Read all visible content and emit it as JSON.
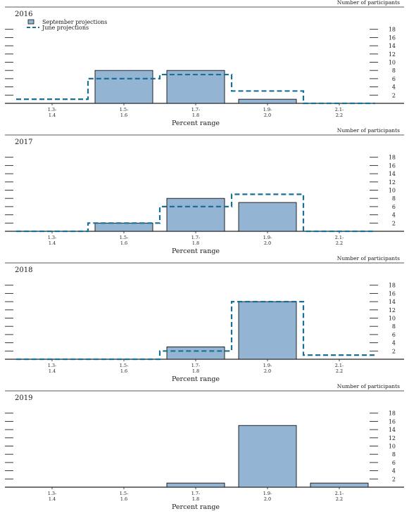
{
  "chart_data": [
    {
      "type": "bar",
      "title": "2016",
      "xlabel": "Percent range",
      "ylabel": "Number of participants",
      "categories": [
        "1.3-\n1.4",
        "1.5-\n1.6",
        "1.7-\n1.8",
        "1.9-\n2.0",
        "2.1-\n2.2"
      ],
      "y_ticks": [
        2,
        4,
        6,
        8,
        10,
        12,
        14,
        16,
        18
      ],
      "ylim": [
        0,
        18
      ],
      "legend": {
        "position": "top-left"
      },
      "series": [
        {
          "name": "September projections",
          "style": "bar",
          "color": "#94b4d4",
          "values": [
            0,
            8,
            8,
            1,
            0
          ]
        },
        {
          "name": "June projections",
          "style": "dashed-step",
          "color": "#1a6f96",
          "values": [
            1,
            6,
            7,
            3,
            0
          ]
        }
      ]
    },
    {
      "type": "bar",
      "title": "2017",
      "xlabel": "Percent range",
      "ylabel": "Number of participants",
      "categories": [
        "1.3-\n1.4",
        "1.5-\n1.6",
        "1.7-\n1.8",
        "1.9-\n2.0",
        "2.1-\n2.2"
      ],
      "y_ticks": [
        2,
        4,
        6,
        8,
        10,
        12,
        14,
        16,
        18
      ],
      "ylim": [
        0,
        18
      ],
      "series": [
        {
          "style": "bar",
          "color": "#94b4d4",
          "values": [
            0,
            2,
            8,
            7,
            0
          ]
        },
        {
          "style": "dashed-step",
          "color": "#1a6f96",
          "values": [
            0,
            2,
            6,
            9,
            0
          ]
        }
      ]
    },
    {
      "type": "bar",
      "title": "2018",
      "xlabel": "Percent range",
      "ylabel": "Number of participants",
      "categories": [
        "1.3-\n1.4",
        "1.5-\n1.6",
        "1.7-\n1.8",
        "1.9-\n2.0",
        "2.1-\n2.2"
      ],
      "y_ticks": [
        2,
        4,
        6,
        8,
        10,
        12,
        14,
        16,
        18
      ],
      "ylim": [
        0,
        18
      ],
      "series": [
        {
          "style": "bar",
          "color": "#94b4d4",
          "values": [
            0,
            0,
            3,
            14,
            0
          ]
        },
        {
          "style": "dashed-step",
          "color": "#1a6f96",
          "values": [
            0,
            0,
            2,
            14,
            1
          ]
        }
      ]
    },
    {
      "type": "bar",
      "title": "2019",
      "xlabel": "Percent range",
      "ylabel": "Number of participants",
      "categories": [
        "1.3-\n1.4",
        "1.5-\n1.6",
        "1.7-\n1.8",
        "1.9-\n2.0",
        "2.1-\n2.2"
      ],
      "y_ticks": [
        2,
        4,
        6,
        8,
        10,
        12,
        14,
        16,
        18
      ],
      "ylim": [
        0,
        18
      ],
      "series": [
        {
          "style": "bar",
          "color": "#94b4d4",
          "values": [
            0,
            0,
            1,
            15,
            1
          ]
        }
      ]
    }
  ]
}
